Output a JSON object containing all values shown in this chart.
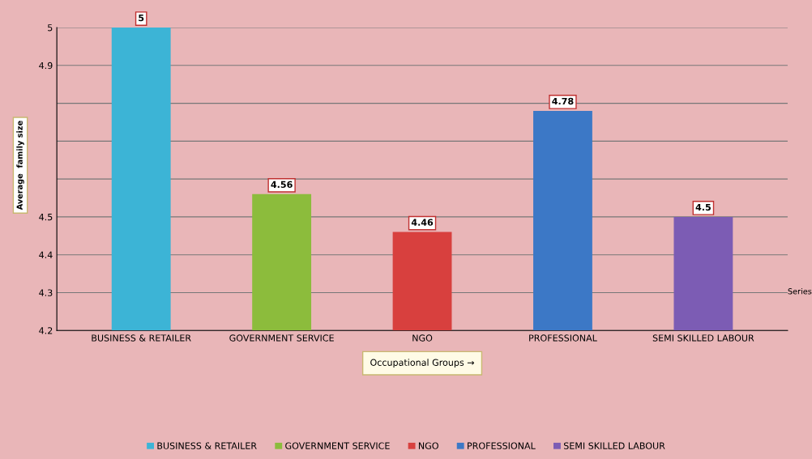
{
  "chart_data": {
    "type": "bar",
    "categories": [
      "BUSINESS & RETAILER",
      "GOVERNMENT SERVICE",
      "NGO",
      "PROFESSIONAL",
      "SEMI SKILLED LABOUR"
    ],
    "series": [
      {
        "name": "BUSINESS & RETAILER",
        "color": "#3cb4d6",
        "values": [
          5,
          null,
          null,
          null,
          null
        ]
      },
      {
        "name": "GOVERNMENT SERVICE",
        "color": "#8cbc3c",
        "values": [
          null,
          4.56,
          null,
          null,
          null
        ]
      },
      {
        "name": "NGO",
        "color": "#d8403e",
        "values": [
          null,
          null,
          4.46,
          null,
          null
        ]
      },
      {
        "name": "PROFESSIONAL",
        "color": "#3c78c6",
        "values": [
          null,
          null,
          null,
          4.78,
          null
        ]
      },
      {
        "name": "SEMI SKILLED LABOUR",
        "color": "#7c5cb4",
        "values": [
          null,
          null,
          null,
          null,
          4.5
        ]
      }
    ],
    "ylim": [
      4.2,
      5
    ],
    "yticks": [
      4.2,
      4.3,
      4.4,
      4.5,
      {
        "value": 4.6,
        "label": null
      },
      {
        "value": 4.7,
        "label": null
      },
      {
        "value": 4.8,
        "label": null
      },
      4.9,
      5
    ],
    "ylabel": "Average  family size",
    "xlabel": "Occupational Groups →",
    "annotations": [
      "Series"
    ],
    "data_labels": true,
    "grid": "y",
    "legend": "bottom"
  }
}
